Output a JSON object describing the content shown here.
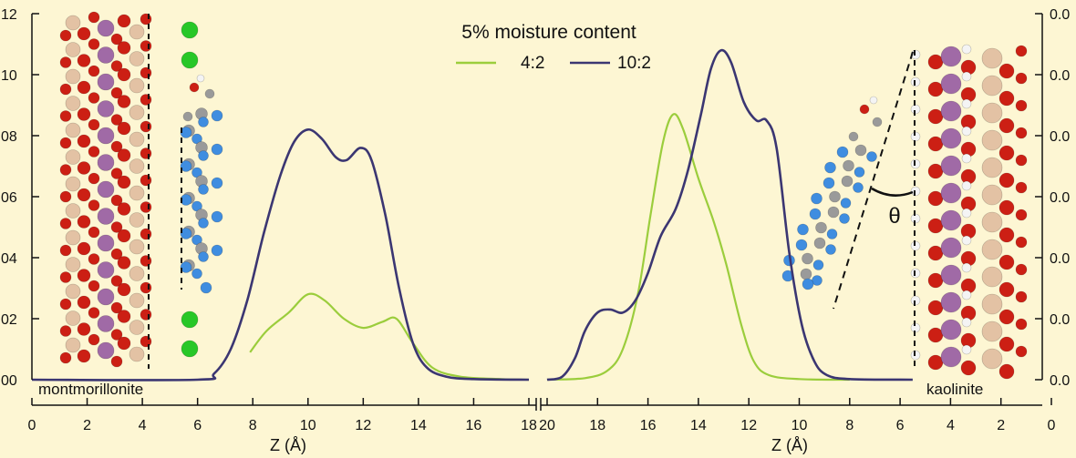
{
  "chart_data": {
    "type": "line",
    "legend": {
      "title": "5% moisture content",
      "placement": "top-center"
    },
    "left_yticks": [
      "12",
      "10",
      "08",
      "06",
      "04",
      "02",
      "00"
    ],
    "right_yticks": [
      "0.0",
      "0.0",
      "0.0",
      "0.0",
      "0.0",
      "0.0",
      "0.0"
    ],
    "grid": false,
    "panels": [
      {
        "name": "montmorillonite",
        "surface_label": "montmorillonite",
        "xlabel": "Z (Å)",
        "xlim": [
          0,
          18
        ],
        "ylim": [
          0,
          12
        ],
        "xticks": [
          0,
          2,
          4,
          6,
          8,
          10,
          12,
          14,
          16,
          18
        ],
        "series": [
          {
            "name": "4:2",
            "color": "#9bcd3c",
            "points": [
              [
                7.9,
                0.9
              ],
              [
                8.5,
                1.6
              ],
              [
                9.3,
                2.2
              ],
              [
                10.0,
                2.8
              ],
              [
                10.6,
                2.6
              ],
              [
                11.3,
                2.0
              ],
              [
                12.0,
                1.7
              ],
              [
                12.7,
                1.9
              ],
              [
                13.2,
                2.0
              ],
              [
                13.8,
                1.2
              ],
              [
                14.5,
                0.4
              ],
              [
                15.5,
                0.1
              ],
              [
                17.0,
                0.02
              ],
              [
                18.0,
                0.0
              ]
            ]
          },
          {
            "name": "10:2",
            "color": "#3b3672",
            "points": [
              [
                0,
                0
              ],
              [
                6.0,
                0
              ],
              [
                6.6,
                0.2
              ],
              [
                7.2,
                1.0
              ],
              [
                7.8,
                2.6
              ],
              [
                8.4,
                4.8
              ],
              [
                9.0,
                6.7
              ],
              [
                9.5,
                7.8
              ],
              [
                10.0,
                8.2
              ],
              [
                10.5,
                7.9
              ],
              [
                11.0,
                7.3
              ],
              [
                11.4,
                7.2
              ],
              [
                11.9,
                7.6
              ],
              [
                12.3,
                7.2
              ],
              [
                12.8,
                5.4
              ],
              [
                13.3,
                3.0
              ],
              [
                13.8,
                1.2
              ],
              [
                14.3,
                0.4
              ],
              [
                15.0,
                0.1
              ],
              [
                16.0,
                0.02
              ],
              [
                18.0,
                0.0
              ]
            ]
          }
        ]
      },
      {
        "name": "kaolinite",
        "surface_label": "kaolinite",
        "xlabel": "Z (Å)",
        "xlim": [
          20,
          0
        ],
        "ylim": [
          0,
          12
        ],
        "xticks": [
          20,
          18,
          16,
          14,
          12,
          10,
          8,
          6,
          4,
          2,
          0
        ],
        "series": [
          {
            "name": "4:2",
            "color": "#9bcd3c",
            "points": [
              [
                20.0,
                0.0
              ],
              [
                18.5,
                0.05
              ],
              [
                17.6,
                0.3
              ],
              [
                17.0,
                1.0
              ],
              [
                16.4,
                2.8
              ],
              [
                15.9,
                5.4
              ],
              [
                15.4,
                7.8
              ],
              [
                15.0,
                8.7
              ],
              [
                14.6,
                8.2
              ],
              [
                14.0,
                6.6
              ],
              [
                13.4,
                5.2
              ],
              [
                12.9,
                3.8
              ],
              [
                12.3,
                1.8
              ],
              [
                11.8,
                0.6
              ],
              [
                11.2,
                0.15
              ],
              [
                10.0,
                0.02
              ],
              [
                8.0,
                0.0
              ]
            ]
          },
          {
            "name": "10:2",
            "color": "#3b3672",
            "points": [
              [
                20.0,
                0.0
              ],
              [
                19.4,
                0.1
              ],
              [
                18.9,
                0.7
              ],
              [
                18.5,
                1.6
              ],
              [
                18.0,
                2.2
              ],
              [
                17.5,
                2.3
              ],
              [
                17.0,
                2.2
              ],
              [
                16.5,
                2.6
              ],
              [
                16.0,
                3.5
              ],
              [
                15.5,
                4.7
              ],
              [
                14.9,
                5.6
              ],
              [
                14.4,
                6.9
              ],
              [
                13.9,
                8.7
              ],
              [
                13.5,
                10.2
              ],
              [
                13.1,
                10.8
              ],
              [
                12.7,
                10.4
              ],
              [
                12.2,
                9.1
              ],
              [
                11.7,
                8.5
              ],
              [
                11.3,
                8.5
              ],
              [
                10.9,
                7.6
              ],
              [
                10.4,
                4.2
              ],
              [
                9.9,
                1.8
              ],
              [
                9.4,
                0.6
              ],
              [
                8.9,
                0.15
              ],
              [
                8.0,
                0.02
              ],
              [
                5.5,
                0.0
              ]
            ]
          }
        ]
      }
    ]
  },
  "illustration": {
    "theta_label": "θ",
    "colors": {
      "oxygen": "#cc1f14",
      "aluminium": "#a06aa6",
      "silicon": "#e3c2a4",
      "hydrogen": "#f4f4f4",
      "carbon": "#9a9a9a",
      "fluorine": "#3f8de0",
      "chlorine": "#27c727"
    }
  }
}
